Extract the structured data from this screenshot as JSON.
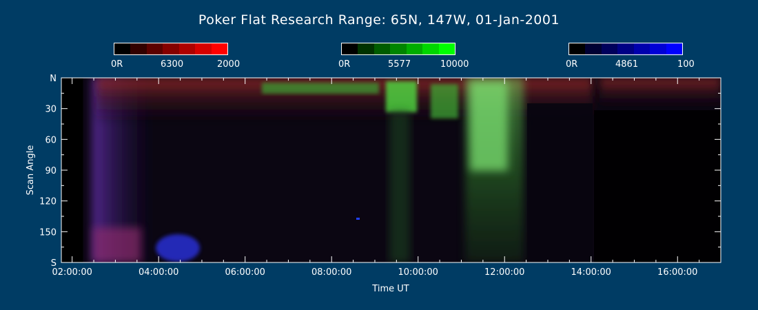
{
  "chart_data": {
    "type": "heatmap",
    "title": "Poker Flat Research Range: 65N, 147W, 01-Jan-2001",
    "xlabel": "Time UT",
    "ylabel": "Scan Angle",
    "x_ticks": [
      "02:00:00",
      "04:00:00",
      "06:00:00",
      "08:00:00",
      "10:00:00",
      "12:00:00",
      "14:00:00",
      "16:00:00"
    ],
    "x_tick_hours": [
      2,
      4,
      6,
      8,
      10,
      12,
      14,
      16
    ],
    "xlim_hours": [
      1.75,
      17.0
    ],
    "y_ticks": [
      "N",
      "30",
      "60",
      "90",
      "120",
      "150",
      "S"
    ],
    "y_tick_values": [
      0,
      30,
      60,
      90,
      120,
      150,
      180
    ],
    "ylim": [
      0,
      180
    ],
    "data_start_hours": 2.25,
    "colorbars": [
      {
        "wavelength": "6300",
        "min_label": "0R",
        "max_label": "2000",
        "color": "#ff0000"
      },
      {
        "wavelength": "5577",
        "min_label": "0R",
        "max_label": "10000",
        "color": "#00ff00"
      },
      {
        "wavelength": "4861",
        "min_label": "0R",
        "max_label": "100",
        "color": "#0000ff"
      }
    ]
  }
}
